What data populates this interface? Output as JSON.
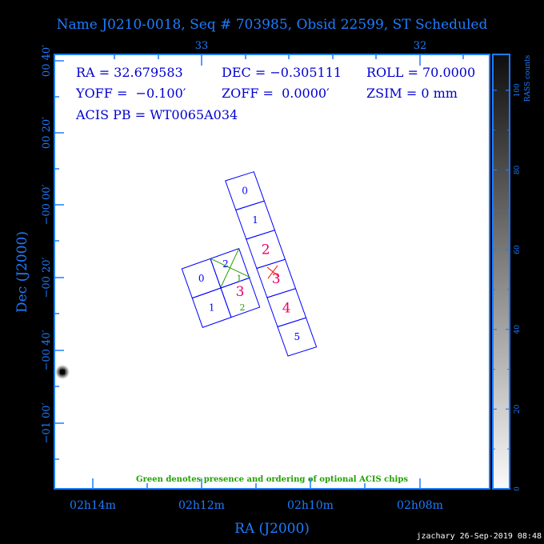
{
  "title": "Name J0210-0018, Seq # 703985, Obsid 22599, ST Scheduled",
  "info": {
    "ra": "RA = 32.679583",
    "dec": "DEC = −0.305111",
    "roll": "ROLL = 70.0000",
    "yoff": "YOFF =  −0.100′",
    "zoff": "ZOFF =  0.0000′",
    "zsim": "ZSIM = 0 mm",
    "acis_pb": "ACIS PB = WT0065A034"
  },
  "note": "Green denotes presence and ordering of optional ACIS chips",
  "footer": "jzachary 26-Sep-2019 08:48",
  "colors": {
    "axis": "#1e7cff",
    "info": "#0000d0",
    "chip": "#0000ff",
    "optional": "#22a000",
    "highlight": "#e8006a",
    "pointing": "#ff0000"
  },
  "chart_data": {
    "type": "image",
    "xlabel": "RA (J2000)",
    "ylabel": "Dec (J2000)",
    "x_ticks": [
      "02h14m",
      "02h12m",
      "02h10m",
      "02h08m"
    ],
    "top_ticks": [
      "33",
      "32"
    ],
    "y_ticks": [
      "00 40′",
      "00 20′",
      "−00 00′",
      "−00 20′",
      "−00 40′",
      "−01 00′"
    ],
    "colorbar": {
      "label": "RASS counts",
      "ticks": [
        "0",
        "20",
        "40",
        "60",
        "80",
        "100"
      ],
      "range": [
        0,
        109
      ],
      "colormap": "white-to-black"
    },
    "acis_s_chips": [
      "0",
      "1",
      "2",
      "3",
      "4",
      "5"
    ],
    "acis_i_chips": [
      "0",
      "1",
      "2",
      "3"
    ],
    "optional_chip_order": [
      "1",
      "2"
    ],
    "highlighted_chips": [
      "S2",
      "S3",
      "S4",
      "I3"
    ]
  }
}
